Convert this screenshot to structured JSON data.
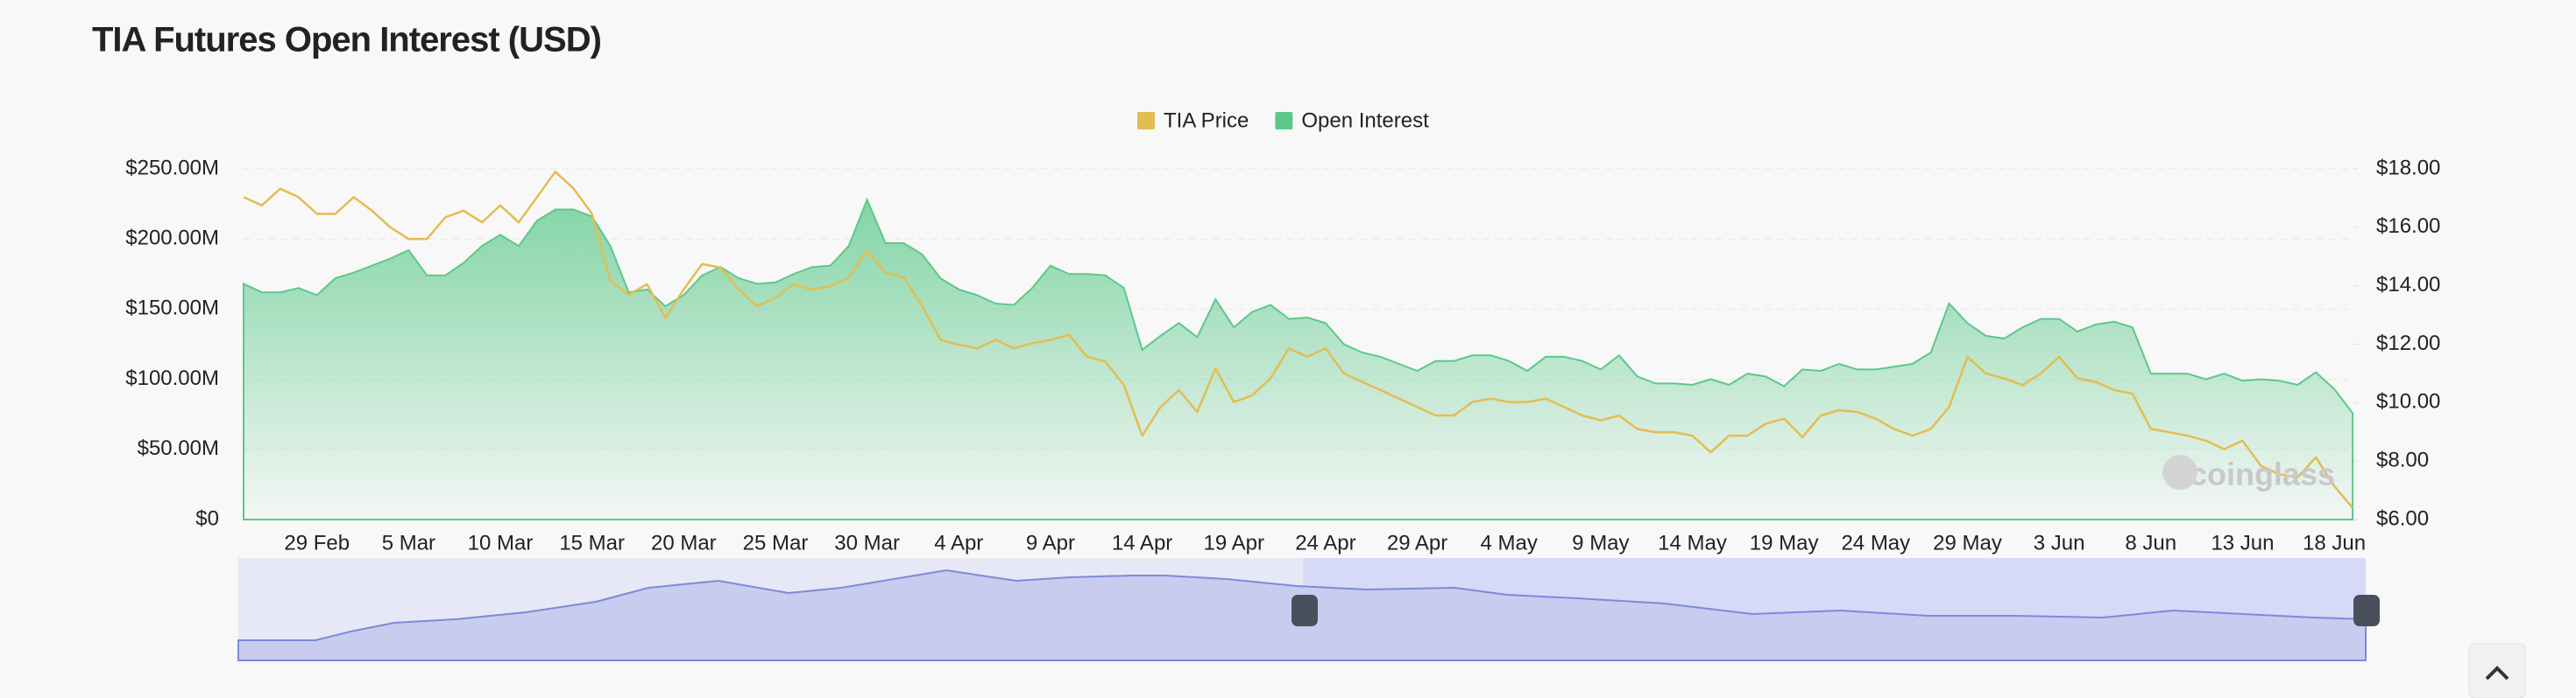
{
  "chart_data": {
    "type": "area-line",
    "title": "TIA Futures Open Interest (USD)",
    "watermark": "coinglass",
    "categories": [
      null,
      null,
      null,
      null,
      "29 Feb",
      null,
      null,
      null,
      null,
      "5 Mar",
      null,
      null,
      null,
      null,
      "10 Mar",
      null,
      null,
      null,
      null,
      "15 Mar",
      null,
      null,
      null,
      null,
      "20 Mar",
      null,
      null,
      null,
      null,
      "25 Mar",
      null,
      null,
      null,
      null,
      "30 Mar",
      null,
      null,
      null,
      null,
      "4 Apr",
      null,
      null,
      null,
      null,
      "9 Apr",
      null,
      null,
      null,
      null,
      "14 Apr",
      null,
      null,
      null,
      null,
      "19 Apr",
      null,
      null,
      null,
      null,
      "24 Apr",
      null,
      null,
      null,
      null,
      "29 Apr",
      null,
      null,
      null,
      null,
      "4 May",
      null,
      null,
      null,
      null,
      "9 May",
      null,
      null,
      null,
      null,
      "14 May",
      null,
      null,
      null,
      null,
      "19 May",
      null,
      null,
      null,
      null,
      "24 May",
      null,
      null,
      null,
      null,
      "29 May",
      null,
      null,
      null,
      null,
      "3 Jun",
      null,
      null,
      null,
      null,
      "8 Jun",
      null,
      null,
      null,
      null,
      "13 Jun",
      null,
      null,
      null,
      null,
      "18 Jun",
      null
    ],
    "series": [
      {
        "name": "TIA Price",
        "color": "#e3bd52",
        "axis": "y2",
        "values": [
          17.03,
          16.75,
          17.32,
          17.03,
          16.46,
          16.46,
          17.03,
          16.57,
          16.0,
          15.6,
          15.6,
          16.34,
          16.57,
          16.17,
          16.75,
          16.17,
          17.03,
          17.9,
          17.32,
          16.46,
          14.16,
          13.7,
          14.05,
          12.9,
          13.87,
          14.74,
          14.62,
          13.87,
          13.3,
          13.59,
          14.05,
          13.87,
          13.99,
          14.28,
          15.2,
          14.45,
          14.28,
          13.3,
          12.15,
          11.98,
          11.86,
          12.15,
          11.86,
          12.03,
          12.15,
          12.32,
          11.57,
          11.4,
          10.6,
          8.87,
          9.85,
          10.43,
          9.68,
          11.17,
          10.02,
          10.25,
          10.83,
          11.86,
          11.57,
          11.86,
          11.0,
          10.71,
          10.43,
          10.14,
          9.85,
          9.56,
          9.56,
          10.02,
          10.14,
          10.02,
          10.02,
          10.14,
          9.85,
          9.56,
          9.39,
          9.56,
          9.1,
          8.99,
          8.99,
          8.87,
          8.3,
          8.87,
          8.87,
          9.28,
          9.45,
          8.82,
          9.56,
          9.74,
          9.68,
          9.45,
          9.1,
          8.87,
          9.1,
          9.85,
          11.57,
          11.0,
          10.83,
          10.6,
          11.0,
          11.57,
          10.83,
          10.71,
          10.43,
          10.31,
          9.1,
          8.99,
          8.87,
          8.7,
          8.41,
          8.7,
          7.84,
          7.55,
          7.44,
          8.13,
          7.15,
          6.4
        ]
      },
      {
        "name": "Open Interest",
        "color": "#5cc98a",
        "values": [
          168000000,
          162000000,
          162000000,
          165000000,
          160000000,
          172000000,
          176000000,
          181000000,
          186000000,
          192000000,
          174000000,
          174000000,
          183000000,
          195000000,
          203000000,
          195000000,
          213000000,
          221000000,
          221000000,
          216000000,
          195000000,
          162000000,
          164000000,
          152000000,
          160000000,
          174000000,
          180000000,
          172000000,
          168000000,
          169000000,
          175000000,
          180000000,
          181000000,
          195000000,
          228000000,
          197000000,
          197000000,
          189000000,
          172000000,
          164000000,
          160000000,
          154000000,
          153000000,
          165000000,
          181000000,
          175000000,
          175000000,
          174000000,
          165000000,
          121000000,
          131000000,
          140000000,
          130000000,
          157000000,
          137000000,
          148000000,
          153000000,
          143000000,
          144000000,
          140000000,
          125000000,
          119000000,
          116000000,
          111000000,
          106000000,
          113000000,
          113000000,
          117000000,
          117000000,
          113000000,
          106000000,
          116000000,
          116000000,
          113000000,
          107000000,
          117000000,
          102000000,
          97000000,
          97000000,
          96000000,
          100000000,
          96000000,
          104000000,
          102000000,
          95000000,
          107000000,
          106000000,
          111000000,
          107000000,
          107000000,
          109000000,
          111000000,
          119000000,
          154000000,
          140000000,
          131000000,
          129000000,
          137000000,
          143000000,
          143000000,
          134000000,
          139000000,
          141000000,
          137000000,
          104000000,
          104000000,
          104000000,
          100000000,
          104000000,
          99000000,
          100000000,
          99000000,
          96000000,
          105000000,
          93000000,
          76000000
        ]
      }
    ],
    "ylim": [
      0,
      250000000
    ],
    "yticks": [
      {
        "value": 0,
        "label": "$0"
      },
      {
        "value": 50000000,
        "label": "$50.00M"
      },
      {
        "value": 100000000,
        "label": "$100.00M"
      },
      {
        "value": 150000000,
        "label": "$150.00M"
      },
      {
        "value": 200000000,
        "label": "$200.00M"
      },
      {
        "value": 250000000,
        "label": "$250.00M"
      }
    ],
    "y2lim": [
      6,
      18
    ],
    "y2ticks": [
      {
        "value": 6,
        "label": "$6.00"
      },
      {
        "value": 8,
        "label": "$8.00"
      },
      {
        "value": 10,
        "label": "$10.00"
      },
      {
        "value": 12,
        "label": "$12.00"
      },
      {
        "value": 14,
        "label": "$14.00"
      },
      {
        "value": 16,
        "label": "$16.00"
      },
      {
        "value": 18,
        "label": "$18.00"
      }
    ],
    "grid": true,
    "legend": "top"
  }
}
